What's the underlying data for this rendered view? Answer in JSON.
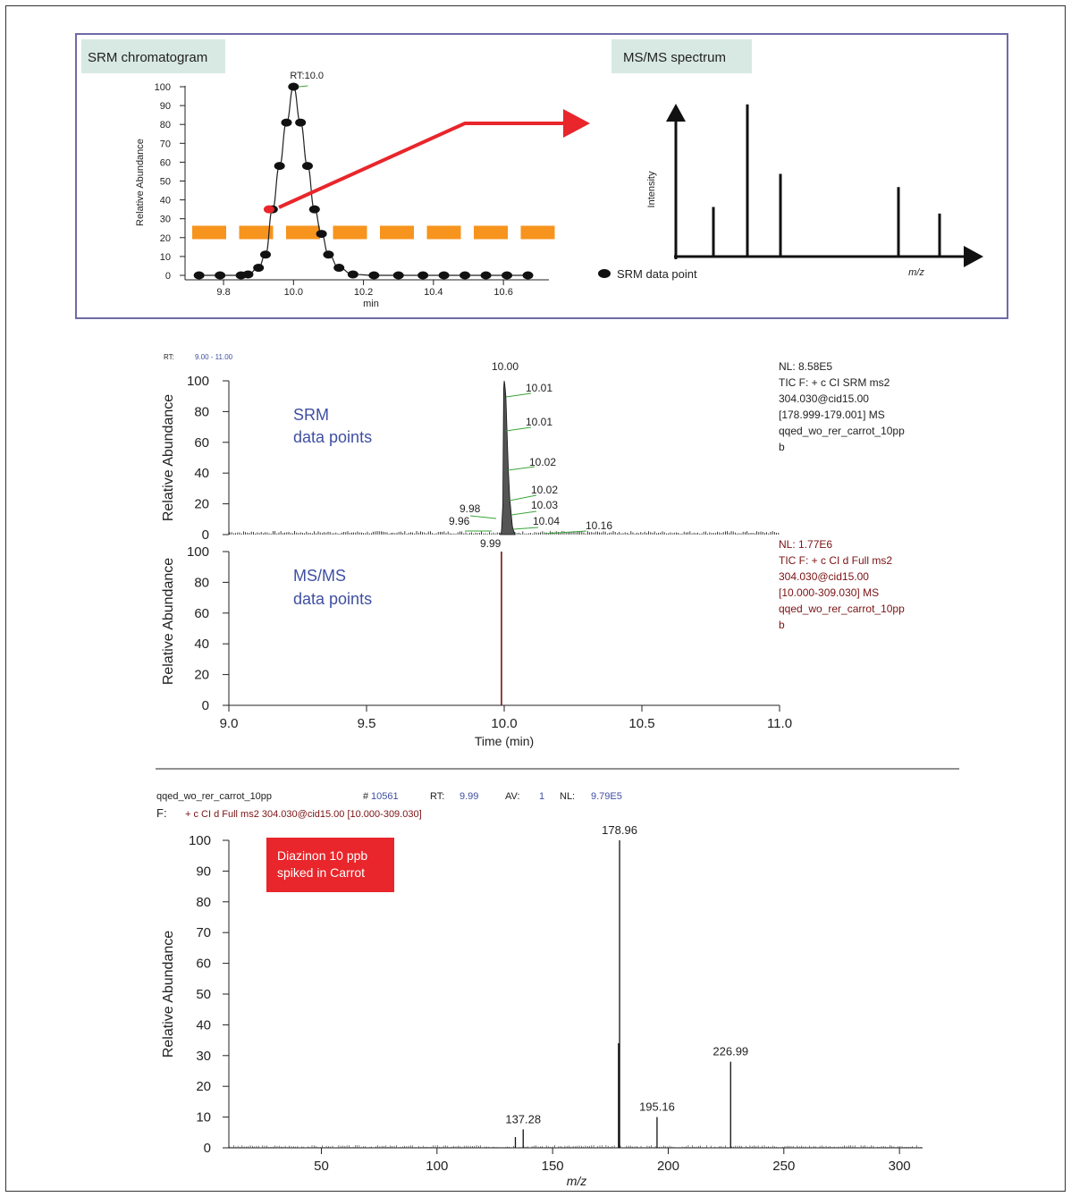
{
  "colors": {
    "box_border": "#6f6aa6",
    "label_bg": "#d8e9e4",
    "red": "#e8262b",
    "orange": "#f7941d",
    "blue_text": "#3f4fa1",
    "dark_red": "#7a1214",
    "green": "#3aa53a",
    "badge_red": "#e8262b"
  },
  "schematic": {
    "srm_label": "SRM chromatogram",
    "msms_label": "MS/MS spectrum",
    "rt_label": "RT:10.0",
    "xlabel": "min",
    "ylabel": "Relative Abundance",
    "intensity_label": "Intensity",
    "mz_label": "m/z",
    "legend_label": "SRM data point",
    "chart_data": {
      "type": "scatter",
      "xlabel": "min",
      "ylabel": "Relative Abundance",
      "xlim": [
        9.69,
        10.73
      ],
      "ylim": [
        0,
        100
      ],
      "xticks": [
        "9.8",
        "10.0",
        "10.2",
        "10.4",
        "10.6"
      ],
      "xtick_values": [
        9.8,
        10.0,
        10.2,
        10.4,
        10.6
      ],
      "yticks": [
        0,
        10,
        20,
        30,
        40,
        50,
        60,
        70,
        80,
        90,
        100
      ],
      "x": [
        9.73,
        9.79,
        9.85,
        9.87,
        9.9,
        9.92,
        9.94,
        9.96,
        9.98,
        10.0,
        10.02,
        10.04,
        10.06,
        10.08,
        10.1,
        10.13,
        10.17,
        10.23,
        10.3,
        10.37,
        10.43,
        10.49,
        10.55,
        10.61,
        10.67
      ],
      "y": [
        0,
        0,
        0,
        0.5,
        4,
        11,
        35,
        58,
        81,
        100,
        81,
        58,
        35,
        22,
        11,
        4,
        0.5,
        0,
        0,
        0,
        0,
        0,
        0,
        0,
        0
      ],
      "highlight_point": {
        "x": 9.93,
        "y": 35
      },
      "threshold": 22.5,
      "spectrum_bars": [
        0.15,
        0.46,
        0.25,
        0.21,
        0.13
      ]
    }
  },
  "trace_header": {
    "rt_label": "RT:",
    "rt_range": "9.00 - 11.00"
  },
  "srm_panel": {
    "title_line1": "SRM",
    "title_line2": "data points",
    "ylabel": "Relative Abundance",
    "info": [
      "NL: 8.58E5",
      "TIC F: + c CI SRM ms2",
      "304.030@cid15.00",
      "[178.999-179.001]  MS",
      "qqed_wo_rer_carrot_10pp",
      "b"
    ],
    "peak_labels": [
      "10.00",
      "10.01",
      "10.01",
      "10.02",
      "10.02",
      "10.03",
      "10.04",
      "10.16",
      "9.98",
      "9.96",
      "9.99"
    ]
  },
  "msms_panel": {
    "title_line1": "MS/MS",
    "title_line2": "data points",
    "ylabel": "Relative Abundance",
    "info": [
      "NL: 1.77E6",
      "TIC F: + c CI d Full ms2",
      "304.030@cid15.00",
      "[10.000-309.030]  MS",
      "qqed_wo_rer_carrot_10pp",
      "b"
    ]
  },
  "chart_data": [
    {
      "type": "line",
      "title": "SRM data points",
      "ylabel": "Relative Abundance",
      "xlim": [
        9.0,
        11.0
      ],
      "ylim": [
        0,
        100
      ],
      "yticks": [
        0,
        20,
        40,
        60,
        80,
        100
      ],
      "x": [
        9.96,
        9.98,
        9.99,
        10.0,
        10.01,
        10.01,
        10.02,
        10.02,
        10.03,
        10.04,
        10.16
      ],
      "y": [
        1,
        5,
        2,
        100,
        90,
        68,
        42,
        24,
        14,
        5,
        1
      ],
      "peak_labels": [
        "9.96",
        "9.98",
        "9.99",
        "10.00",
        "10.01",
        "10.01",
        "10.02",
        "10.02",
        "10.03",
        "10.04",
        "10.16"
      ]
    },
    {
      "type": "line",
      "title": "MS/MS data points",
      "xlabel": "Time (min)",
      "ylabel": "Relative Abundance",
      "xlim": [
        9.0,
        11.0
      ],
      "ylim": [
        0,
        100
      ],
      "xticks": [
        "9.0",
        "9.5",
        "10.0",
        "10.5",
        "11.0"
      ],
      "xtick_values": [
        9.0,
        9.5,
        10.0,
        10.5,
        11.0
      ],
      "yticks": [
        0,
        20,
        40,
        60,
        80,
        100
      ],
      "x": [
        9.99
      ],
      "y": [
        100
      ]
    },
    {
      "type": "bar",
      "xlabel": "m/z",
      "ylabel": "Relative Abundance",
      "xlim": [
        10,
        310
      ],
      "ylim": [
        0,
        100
      ],
      "xticks": [
        "50",
        "100",
        "150",
        "200",
        "250",
        "300"
      ],
      "xtick_values": [
        50,
        100,
        150,
        200,
        250,
        300
      ],
      "yticks": [
        0,
        10,
        20,
        30,
        40,
        50,
        60,
        70,
        80,
        90,
        100
      ],
      "peaks": [
        {
          "x": 133.9,
          "y": 3.5,
          "label": ""
        },
        {
          "x": 137.28,
          "y": 6,
          "label": "137.28"
        },
        {
          "x": 178.5,
          "y": 34,
          "label": ""
        },
        {
          "x": 178.96,
          "y": 100,
          "label": "178.96"
        },
        {
          "x": 195.16,
          "y": 10,
          "label": "195.16"
        },
        {
          "x": 226.99,
          "y": 28,
          "label": "226.99"
        }
      ]
    }
  ],
  "x_axis_label": "Time (min)",
  "spectrum": {
    "filename": "qqed_wo_rer_carrot_10pp",
    "scan_label": "#",
    "scan_number": "10561",
    "rt_label": "RT:",
    "rt_value": "9.99",
    "av_label": "AV:",
    "av_value": "1",
    "nl_label": "NL:",
    "nl_value": "9.79E5",
    "filter_label": "F:",
    "filter_text": "+ c CI d Full ms2 304.030@cid15.00 [10.000-309.030]",
    "badge_line1": "Diazinon 10 ppb",
    "badge_line2": "spiked in Carrot",
    "ylabel": "Relative Abundance",
    "xlabel": "m/z"
  }
}
